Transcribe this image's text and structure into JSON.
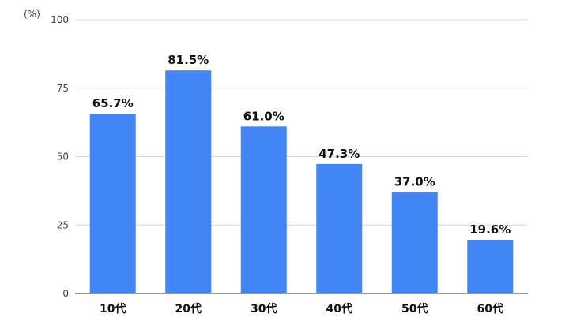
{
  "chart_data": {
    "type": "bar",
    "unit_label": "(%)",
    "categories": [
      "10代",
      "20代",
      "30代",
      "40代",
      "50代",
      "60代"
    ],
    "values": [
      65.7,
      81.5,
      61.0,
      47.3,
      37.0,
      19.6
    ],
    "data_labels": [
      "65.7%",
      "81.5%",
      "61.0%",
      "47.3%",
      "37.0%",
      "19.6%"
    ],
    "yticks": [
      "0",
      "25",
      "50",
      "75",
      "100"
    ],
    "ylim": [
      0,
      100
    ],
    "grid": true,
    "bar_color": "#4285f4"
  }
}
